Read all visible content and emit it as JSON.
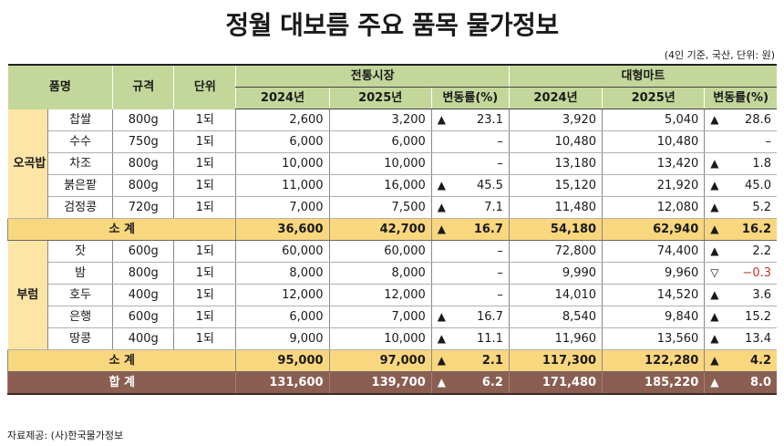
{
  "title": "정월 대보름 주요 품목 물가정보",
  "unit_note": "(4인 기준, 국산, 단위: 원)",
  "headers": {
    "item": "품명",
    "spec": "규격",
    "unit": "단위",
    "market_traditional": "전통시장",
    "market_mart": "대형마트",
    "y2024": "2024년",
    "y2025": "2025년",
    "change": "변동률(%)"
  },
  "groups": [
    {
      "name": "오곡밥",
      "items": [
        {
          "name": "찹쌀",
          "spec": "800g",
          "unit": "1되",
          "t2024": "2,600",
          "t2025": "3,200",
          "tdir": "▲",
          "tchg": "23.1",
          "m2024": "3,920",
          "m2025": "5,040",
          "mdir": "▲",
          "mchg": "28.6"
        },
        {
          "name": "수수",
          "spec": "750g",
          "unit": "1되",
          "t2024": "6,000",
          "t2025": "6,000",
          "tdir": "",
          "tchg": "–",
          "m2024": "10,480",
          "m2025": "10,480",
          "mdir": "",
          "mchg": "–"
        },
        {
          "name": "차조",
          "spec": "800g",
          "unit": "1되",
          "t2024": "10,000",
          "t2025": "10,000",
          "tdir": "",
          "tchg": "–",
          "m2024": "13,180",
          "m2025": "13,420",
          "mdir": "▲",
          "mchg": "1.8"
        },
        {
          "name": "붉은팥",
          "spec": "800g",
          "unit": "1되",
          "t2024": "11,000",
          "t2025": "16,000",
          "tdir": "▲",
          "tchg": "45.5",
          "m2024": "15,120",
          "m2025": "21,920",
          "mdir": "▲",
          "mchg": "45.0"
        },
        {
          "name": "검정콩",
          "spec": "720g",
          "unit": "1되",
          "t2024": "7,000",
          "t2025": "7,500",
          "tdir": "▲",
          "tchg": "7.1",
          "m2024": "11,480",
          "m2025": "12,080",
          "mdir": "▲",
          "mchg": "5.2"
        }
      ],
      "subtotal": {
        "label": "소 계",
        "t2024": "36,600",
        "t2025": "42,700",
        "tdir": "▲",
        "tchg": "16.7",
        "m2024": "54,180",
        "m2025": "62,940",
        "mdir": "▲",
        "mchg": "16.2"
      }
    },
    {
      "name": "부럼",
      "items": [
        {
          "name": "잣",
          "spec": "600g",
          "unit": "1되",
          "t2024": "60,000",
          "t2025": "60,000",
          "tdir": "",
          "tchg": "–",
          "m2024": "72,800",
          "m2025": "74,400",
          "mdir": "▲",
          "mchg": "2.2"
        },
        {
          "name": "밤",
          "spec": "800g",
          "unit": "1되",
          "t2024": "8,000",
          "t2025": "8,000",
          "tdir": "",
          "tchg": "–",
          "m2024": "9,990",
          "m2025": "9,960",
          "mdir": "▽",
          "mchg": "−0.3"
        },
        {
          "name": "호두",
          "spec": "400g",
          "unit": "1되",
          "t2024": "12,000",
          "t2025": "12,000",
          "tdir": "",
          "tchg": "–",
          "m2024": "14,010",
          "m2025": "14,520",
          "mdir": "▲",
          "mchg": "3.6"
        },
        {
          "name": "은행",
          "spec": "600g",
          "unit": "1되",
          "t2024": "6,000",
          "t2025": "7,000",
          "tdir": "▲",
          "tchg": "16.7",
          "m2024": "8,540",
          "m2025": "9,840",
          "mdir": "▲",
          "mchg": "15.2"
        },
        {
          "name": "땅콩",
          "spec": "400g",
          "unit": "1되",
          "t2024": "9,000",
          "t2025": "10,000",
          "tdir": "▲",
          "tchg": "11.1",
          "m2024": "11,960",
          "m2025": "13,560",
          "mdir": "▲",
          "mchg": "13.4"
        }
      ],
      "subtotal": {
        "label": "소 계",
        "t2024": "95,000",
        "t2025": "97,000",
        "tdir": "▲",
        "tchg": "2.1",
        "m2024": "117,300",
        "m2025": "122,280",
        "mdir": "▲",
        "mchg": "4.2"
      }
    }
  ],
  "total": {
    "label": "합 계",
    "t2024": "131,600",
    "t2025": "139,700",
    "tdir": "▲",
    "tchg": "6.2",
    "m2024": "171,480",
    "m2025": "185,220",
    "mdir": "▲",
    "mchg": "8.0"
  },
  "source": "자료제공: (사)한국물가정보",
  "colors": {
    "header_bg": "#c4d79b",
    "group_bg": "#fde5a6",
    "subtotal_bg": "#f9d77e",
    "total_bg": "#8b5e52",
    "negative": "#c0392b"
  }
}
